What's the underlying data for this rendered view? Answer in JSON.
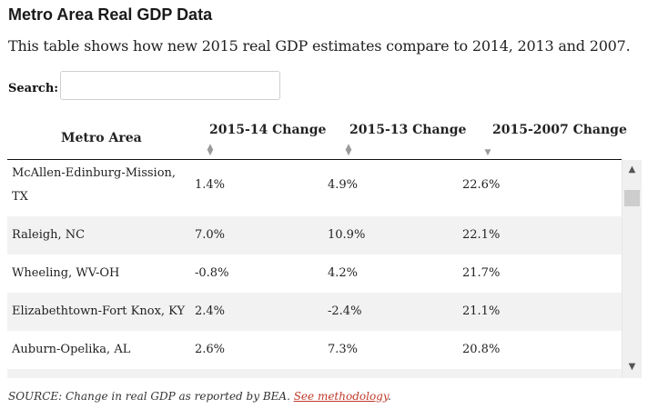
{
  "title": "Metro Area Real GDP Data",
  "subtitle": "This table shows how new 2015 real GDP estimates compare to 2014, 2013 and 2007.",
  "search": {
    "label": "Search:",
    "value": "",
    "placeholder": ""
  },
  "table": {
    "columns": [
      {
        "label": "Metro Area",
        "sort": "none"
      },
      {
        "label": "2015-14 Change",
        "sort": "both"
      },
      {
        "label": "2015-13 Change",
        "sort": "both"
      },
      {
        "label": "2015-2007 Change",
        "sort": "descending"
      }
    ],
    "sort_icons": {
      "up": "▲",
      "down": "▼"
    },
    "rows": [
      {
        "metro": "McAllen-Edinburg-Mission, TX",
        "metro_line1": "McAllen-Edinburg-Mission,",
        "metro_line2": "TX",
        "c1": "1.4%",
        "c2": "4.9%",
        "c3": "22.6%"
      },
      {
        "metro": "Raleigh, NC",
        "c1": "7.0%",
        "c2": "10.9%",
        "c3": "22.1%"
      },
      {
        "metro": "Wheeling, WV-OH",
        "c1": "-0.8%",
        "c2": "4.2%",
        "c3": "21.7%"
      },
      {
        "metro": "Elizabethtown-Fort Knox, KY",
        "c1": "2.4%",
        "c2": "-2.4%",
        "c3": "21.1%"
      },
      {
        "metro": "Auburn-Opelika, AL",
        "c1": "2.6%",
        "c2": "7.3%",
        "c3": "20.8%"
      }
    ]
  },
  "scrollbar": {
    "up_icon": "▲",
    "down_icon": "▼"
  },
  "source": {
    "text": "SOURCE: Change in real GDP as reported by BEA. ",
    "link": "See methodology",
    "suffix": "."
  },
  "colors": {
    "link": "#c0392b",
    "row_stripe": "#f2f2f2",
    "rule": "#111111"
  }
}
